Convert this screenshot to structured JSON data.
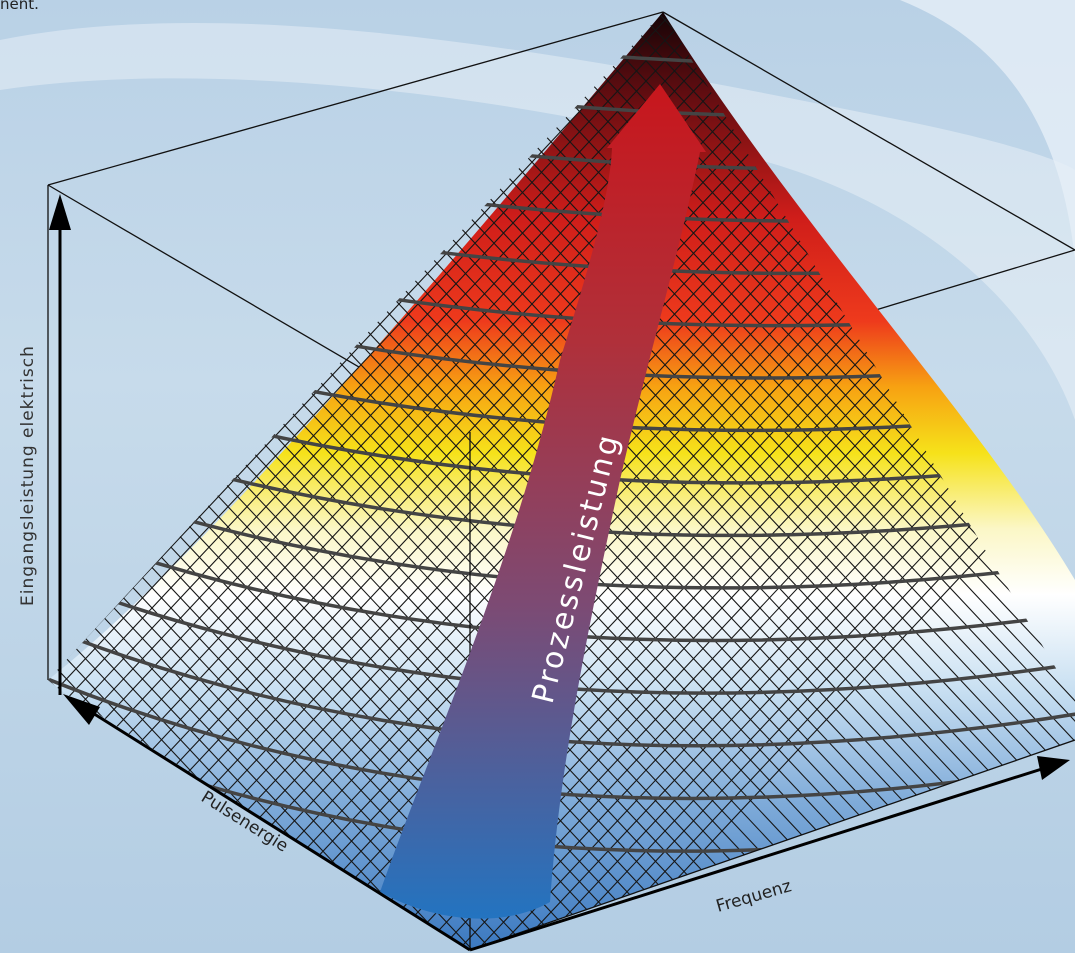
{
  "top_fragment": "nent.",
  "labels": {
    "y_axis": "Eingangsleistung elektrisch",
    "x_axis_left": "Pulsenergie",
    "x_axis_right": "Frequenz",
    "arrow": "Prozessleistung"
  },
  "colors": {
    "background": "#c2d7ea",
    "surface_top": "#120406",
    "surface_red": "#e1261c",
    "surface_yellow": "#f6e21a",
    "surface_white": "#ffffff",
    "surface_blue": "#3a78c0",
    "arrow_top": "#c8161c",
    "arrow_bottom": "#1a78c8",
    "mesh": "#161616",
    "contour": "#444444"
  },
  "icons": [
    "arrowhead-up-icon",
    "arrowhead-left-icon",
    "arrowhead-right-icon"
  ]
}
